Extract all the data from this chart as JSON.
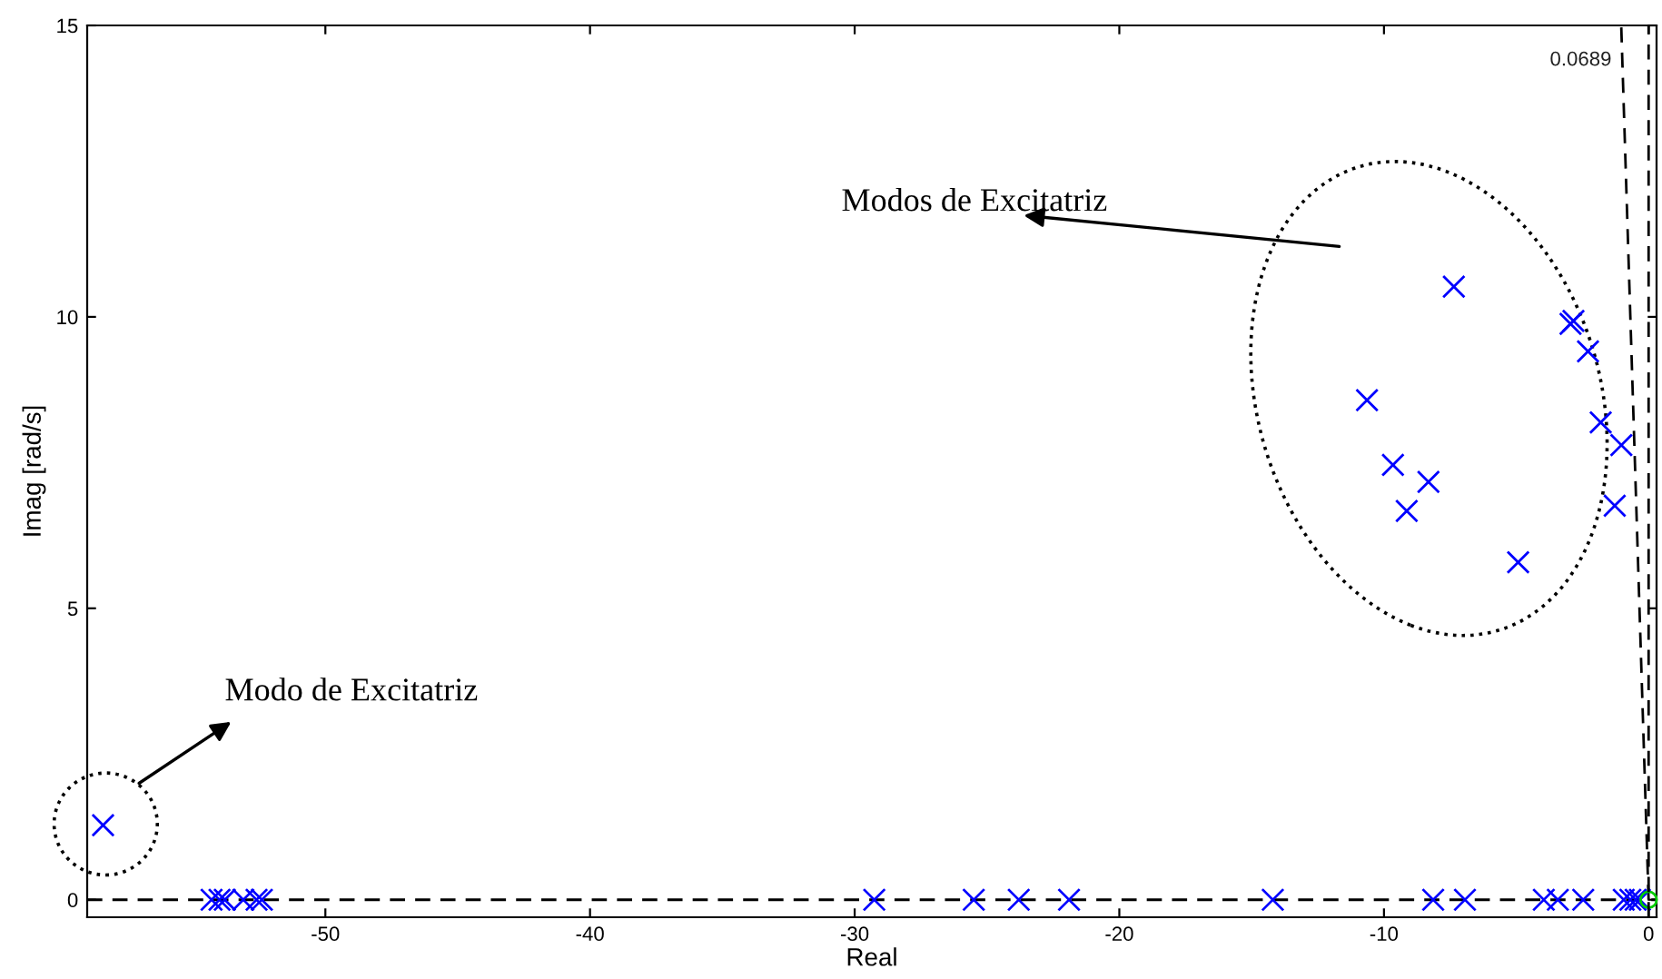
{
  "chart_data": {
    "type": "scatter",
    "xlabel": "Real",
    "ylabel": "Imag [rad/s]",
    "xlim": [
      -59,
      0.3
    ],
    "ylim": [
      -0.3,
      15
    ],
    "xticks": [
      -50,
      -40,
      -30,
      -20,
      -10,
      0
    ],
    "yticks": [
      0,
      5,
      10,
      15
    ],
    "grid": false,
    "series": [
      {
        "marker": "cross",
        "color": "#0000ff",
        "x": [
          -58.4,
          -7.36,
          -2.84,
          -2.95,
          -2.29,
          -10.64,
          -1.81,
          -1.03,
          -9.66,
          -8.32,
          -9.14,
          -1.28,
          -4.93,
          -54.3,
          -54.0,
          -53.8,
          -53.1,
          -52.6,
          -52.4,
          -29.26,
          -25.5,
          -23.8,
          -21.9,
          -14.2,
          -8.14,
          -6.94,
          -3.96,
          -3.43,
          -2.47,
          -0.94,
          -0.69,
          -0.49,
          -0.33
        ],
        "values": [
          1.28,
          10.52,
          9.93,
          9.88,
          9.41,
          8.57,
          8.19,
          7.8,
          7.46,
          7.17,
          6.67,
          6.76,
          5.79,
          0,
          0,
          0,
          0,
          0,
          0,
          0,
          0,
          0,
          0,
          0,
          0,
          0,
          0,
          0,
          0,
          0,
          0,
          0,
          0
        ]
      },
      {
        "marker": "circle",
        "color": "#00cc00",
        "x": [
          0
        ],
        "values": [
          0
        ]
      },
      {
        "type": "line",
        "line_style": "dashed",
        "color": "#000000",
        "x": [
          0,
          -1.035
        ],
        "values": [
          0,
          15
        ]
      }
    ],
    "ref_lines": [
      {
        "axis": "y",
        "value": 0,
        "line_style": "dashed",
        "color": "#000000"
      },
      {
        "axis": "x",
        "value": 0,
        "line_style": "dashed",
        "color": "#000000"
      }
    ],
    "annotations": [
      "0.0689",
      "Modos de Excitatriz",
      "Modo de Excitatriz"
    ]
  }
}
